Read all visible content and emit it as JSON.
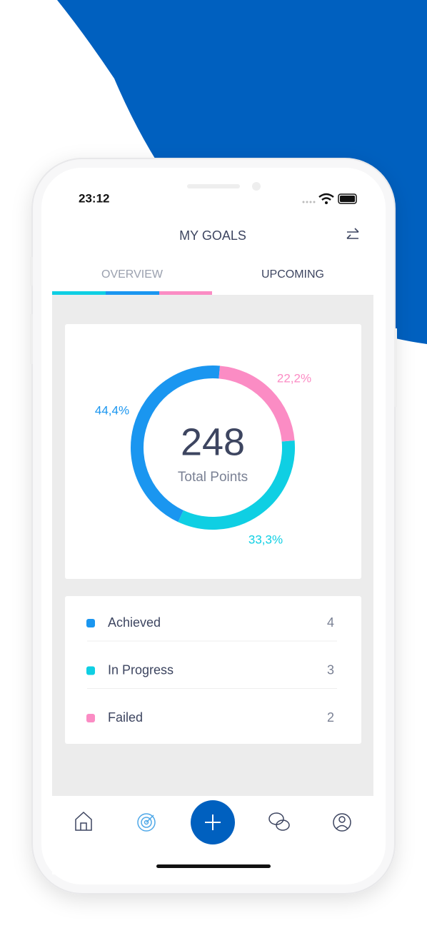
{
  "status_bar": {
    "time": "23:12"
  },
  "header": {
    "title": "MY GOALS"
  },
  "tabs": [
    "OVERVIEW",
    "UPCOMING"
  ],
  "chart_data": {
    "type": "donut",
    "values": [
      44.4,
      33.3,
      22.2
    ],
    "value_labels": [
      "44,4%",
      "33,3%",
      "22,2%"
    ],
    "colors": [
      "#1a96f0",
      "#0fcfe3",
      "#fb8cc4"
    ],
    "center_value": "248",
    "center_label": "Total Points"
  },
  "legend": [
    {
      "label": "Achieved",
      "count": "4"
    },
    {
      "label": "In Progress",
      "count": "3"
    },
    {
      "label": "Failed",
      "count": "2"
    }
  ]
}
